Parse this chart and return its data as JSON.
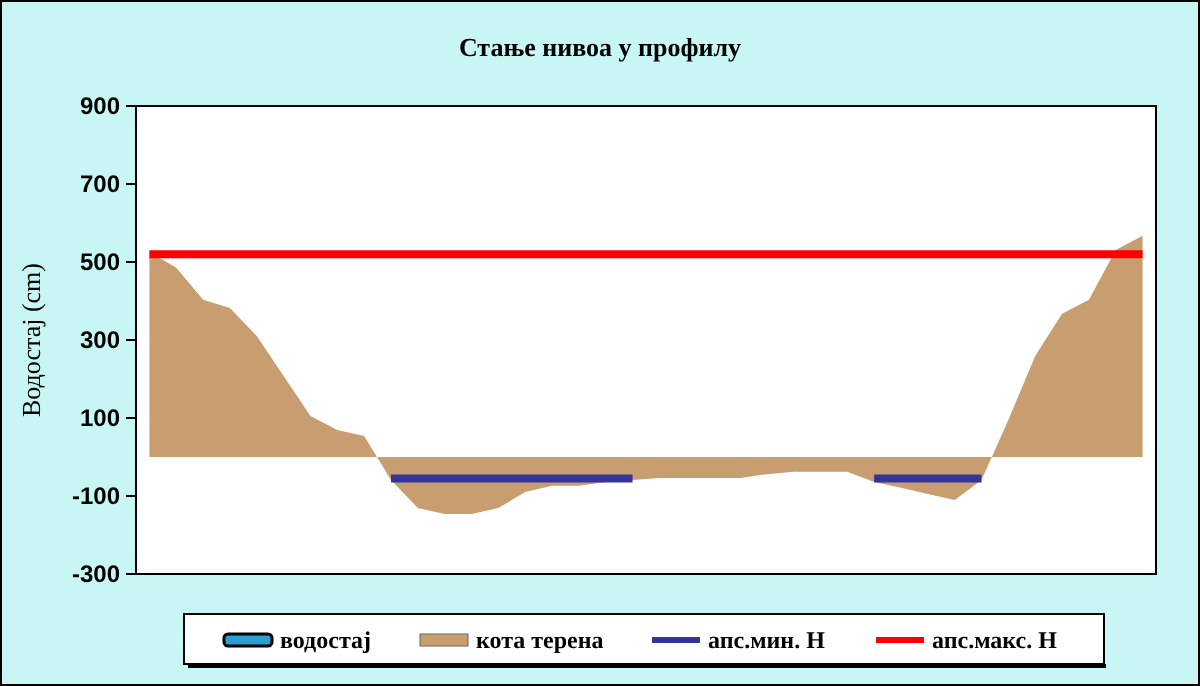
{
  "chart_data": {
    "type": "area",
    "title": "Стање нивоа у профилу",
    "ylabel": "Водостај (cm)",
    "categories": [
      null,
      null,
      null,
      null,
      null,
      null,
      null,
      null,
      null,
      null,
      null,
      null,
      null,
      null,
      null,
      null,
      null,
      null,
      null,
      null,
      null,
      null,
      null,
      null,
      null,
      null,
      null,
      null,
      null,
      null,
      null,
      null,
      null,
      null,
      null,
      null,
      null,
      null
    ],
    "series": [
      {
        "name": "водостај",
        "type": "bar",
        "color": "#2a9fd0",
        "values": [
          null,
          null,
          null,
          null,
          null,
          null,
          null,
          null,
          null,
          null,
          null,
          null,
          null,
          null,
          null,
          null,
          null,
          null,
          null,
          null,
          null,
          null,
          null,
          null,
          null,
          null,
          null,
          null,
          null,
          null,
          null,
          null,
          null,
          null,
          null,
          null,
          null,
          null
        ]
      },
      {
        "name": "кота терена",
        "color": "#c89e70",
        "values": [
          526,
          485,
          403,
          382,
          310,
          208,
          105,
          69,
          54,
          -59,
          -131,
          -146,
          -146,
          -131,
          -90,
          -74,
          -74,
          -64,
          -59,
          -54,
          -54,
          -54,
          -54,
          -44,
          -38,
          -38,
          -38,
          -64,
          -79,
          -95,
          -110,
          -59,
          95,
          259,
          367,
          403,
          531,
          567
        ]
      },
      {
        "name": "апс.мин. Н",
        "type": "line",
        "color": "#333399",
        "values": [
          null,
          null,
          null,
          null,
          null,
          null,
          null,
          null,
          null,
          -55,
          -55,
          -55,
          -55,
          -55,
          -55,
          -55,
          -55,
          -55,
          -55,
          null,
          null,
          null,
          null,
          null,
          null,
          null,
          null,
          -55,
          -55,
          -55,
          -55,
          -55,
          null,
          null,
          null,
          null,
          null,
          null
        ]
      },
      {
        "name": "апс.макс. Н",
        "type": "line",
        "color": "#ff0000",
        "values": [
          520,
          520,
          520,
          520,
          520,
          520,
          520,
          520,
          520,
          520,
          520,
          520,
          520,
          520,
          520,
          520,
          520,
          520,
          520,
          520,
          520,
          520,
          520,
          520,
          520,
          520,
          520,
          520,
          520,
          520,
          520,
          520,
          520,
          520,
          520,
          520,
          520,
          520
        ]
      }
    ],
    "ylim": [
      -300,
      900
    ],
    "yticks": [
      -300,
      -100,
      100,
      300,
      500,
      700,
      900
    ],
    "grid": false,
    "legend": "bottom"
  }
}
